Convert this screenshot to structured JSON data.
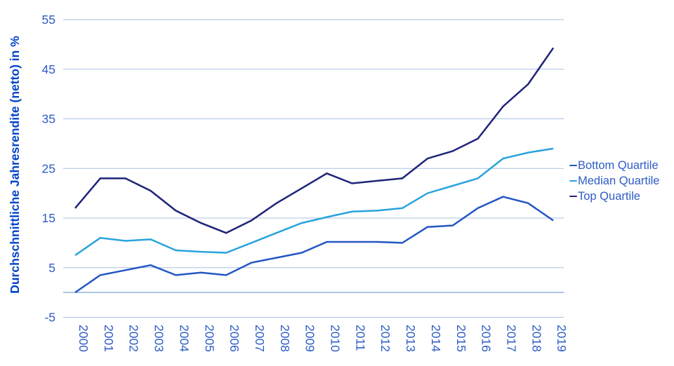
{
  "chart_data": {
    "type": "line",
    "title": "",
    "xlabel": "",
    "ylabel": "Durchschnittliche Jahresrendite (netto) in %",
    "ylim": [
      -5,
      55
    ],
    "yticks": [
      55,
      45,
      35,
      25,
      15,
      5,
      -5
    ],
    "zero_baseline": 0,
    "grid": "horizontal",
    "legend_position": "right",
    "x": [
      2000,
      2001,
      2002,
      2003,
      2004,
      2005,
      2006,
      2007,
      2008,
      2009,
      2010,
      2011,
      2012,
      2013,
      2014,
      2015,
      2016,
      2017,
      2018,
      2019
    ],
    "series": [
      {
        "name": "Bottom Quartile",
        "color": "#2456c4",
        "values": [
          0,
          3.5,
          4.5,
          5.5,
          3.5,
          4,
          3.5,
          6,
          7,
          8,
          10.2,
          10.2,
          10.2,
          10,
          13.2,
          13.5,
          17,
          19.3,
          18,
          14.5
        ]
      },
      {
        "name": "Median Quartile",
        "color": "#29a3dc",
        "values": [
          7.5,
          11,
          10.4,
          10.7,
          8.5,
          8.2,
          8,
          10,
          12,
          14,
          15.2,
          16.3,
          16.5,
          17,
          20,
          21.5,
          23,
          27,
          28.2,
          29
        ]
      },
      {
        "name": "Top Quartile",
        "color": "#1f2479",
        "values": [
          17,
          23,
          23,
          20.5,
          16.5,
          14,
          12,
          14.5,
          18,
          21,
          24,
          22,
          22.5,
          23,
          27,
          28.5,
          31,
          37.5,
          42,
          49.3
        ]
      }
    ]
  },
  "y_axis": {
    "title": "Durchschnittliche Jahresrendite (netto) in %",
    "tick_labels": [
      "55",
      "45",
      "35",
      "25",
      "15",
      "5",
      "-5"
    ]
  },
  "x_axis": {
    "tick_labels": [
      "2000",
      "2001",
      "2002",
      "2003",
      "2004",
      "2005",
      "2006",
      "2007",
      "2008",
      "2009",
      "2010",
      "2011",
      "2012",
      "2013",
      "2014",
      "2015",
      "2016",
      "2017",
      "2018",
      "2019"
    ]
  },
  "legend": {
    "items": [
      {
        "label": "Bottom Quartile"
      },
      {
        "label": "Median Quartile"
      },
      {
        "label": "Top Quartile"
      }
    ]
  },
  "colors": {
    "bottom_quartile": "#2456c4",
    "median_quartile": "#29a3dc",
    "top_quartile": "#1f2479",
    "gridline": "#aac1e6",
    "zero_line": "#a3bce4",
    "tick_label": "#2e5cc5",
    "axis_title": "#0143c9",
    "legend_text": "#2e5cc5",
    "background": "#ffffff"
  }
}
